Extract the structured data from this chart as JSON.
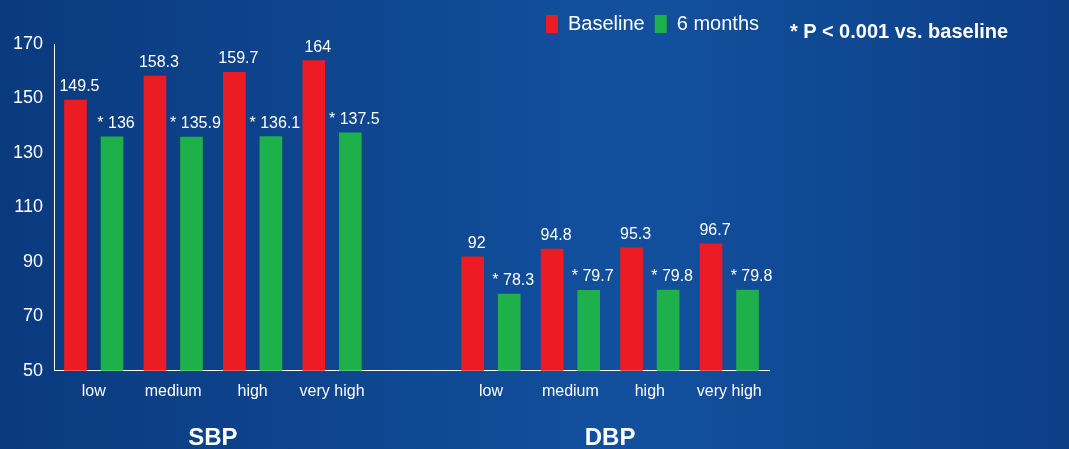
{
  "chart_data": {
    "type": "bar",
    "categories": [
      "low",
      "medium",
      "high",
      "very high",
      null,
      "low",
      "medium",
      "high",
      "very high"
    ],
    "series": [
      {
        "name": "Baseline",
        "color": "#ed1c24",
        "values": [
          149.5,
          158.3,
          159.7,
          164,
          null,
          92,
          94.8,
          95.3,
          96.7
        ],
        "value_labels": [
          "149.5",
          "158.3",
          "159.7",
          "164",
          null,
          "92",
          "94.8",
          "95.3",
          "96.7"
        ]
      },
      {
        "name": "6 months",
        "color": "#1db04b",
        "values": [
          136,
          135.9,
          136.1,
          137.5,
          null,
          78.3,
          79.7,
          79.8,
          79.8
        ],
        "value_labels": [
          "* 136",
          "* 135.9",
          "* 136.1",
          "* 137.5",
          null,
          "* 78.3",
          "* 79.7",
          "* 79.8",
          "* 79.8"
        ]
      }
    ],
    "ylim": [
      50,
      170
    ],
    "yticks": [
      50,
      70,
      90,
      110,
      130,
      150,
      170
    ],
    "grid": false,
    "legend": "top right",
    "annotations": [
      "* P < 0.001 vs. baseline",
      "SBP",
      "DBP"
    ]
  }
}
